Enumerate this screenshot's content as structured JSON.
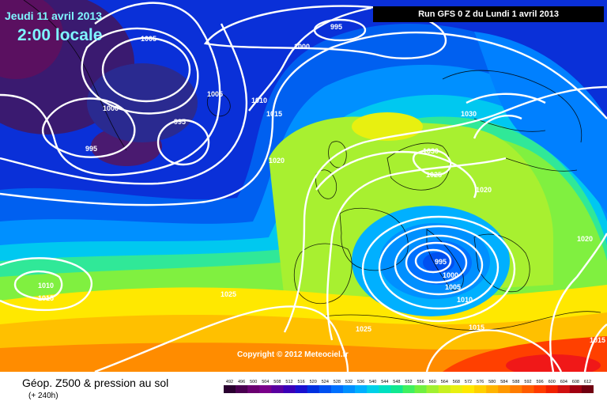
{
  "header": {
    "date": "Jeudi 11 avril 2013",
    "time": "2:00 locale",
    "run": "Run GFS 0 Z du Lundi 1 avril 2013"
  },
  "copyright": "Copyright © 2012 Meteociel.fr",
  "parameter": {
    "title": "Géop. Z500 & pression au sol",
    "subtitle": "(+ 240h)"
  },
  "isobar_labels": [
    "995",
    "1000",
    "1005",
    "1000",
    "995",
    "995",
    "1005",
    "1010",
    "1015",
    "1020",
    "1030",
    "1030",
    "1025",
    "1020",
    "995",
    "1000",
    "1005",
    "1010",
    "1015",
    "1025",
    "1025",
    "1010",
    "1015",
    "1020",
    "1015"
  ],
  "scale": {
    "ticks": [
      "492",
      "496",
      "500",
      "504",
      "508",
      "512",
      "516",
      "520",
      "524",
      "528",
      "532",
      "536",
      "540",
      "544",
      "548",
      "552",
      "556",
      "560",
      "564",
      "568",
      "572",
      "576",
      "580",
      "584",
      "588",
      "592",
      "596",
      "600",
      "604",
      "608",
      "612"
    ],
    "colors": [
      "#2a0030",
      "#4a0050",
      "#6a0070",
      "#7a008a",
      "#5a00a0",
      "#3a00b8",
      "#1a10d0",
      "#0030e0",
      "#0050f0",
      "#0070ff",
      "#0090ff",
      "#00b0ff",
      "#00d0e8",
      "#00e0c0",
      "#10e890",
      "#40f060",
      "#70f040",
      "#a0f030",
      "#c8f020",
      "#e8f010",
      "#ffe800",
      "#ffd000",
      "#ffb400",
      "#ff9800",
      "#ff7c00",
      "#ff5c00",
      "#ff3c00",
      "#f02000",
      "#d01010",
      "#a00010",
      "#700010"
    ]
  }
}
